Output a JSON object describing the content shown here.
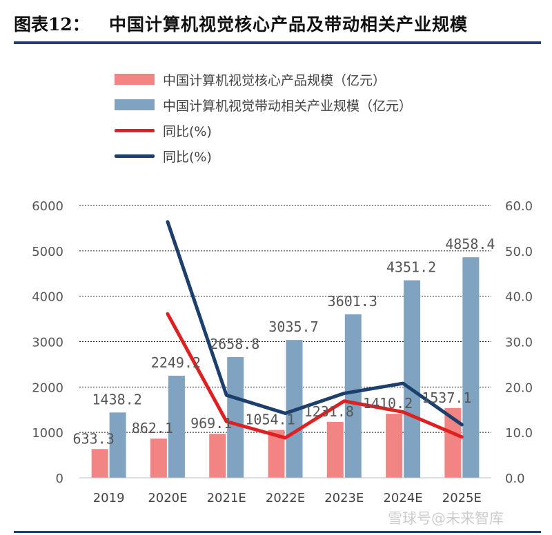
{
  "header": {
    "label": "图表12：",
    "title": "中国计算机视觉核心产品及带动相关产业规模"
  },
  "watermark": "雪球号@未来智库",
  "colors": {
    "core_bar": "#f28583",
    "related_bar": "#7fa3c0",
    "core_line": "#e02020",
    "related_line": "#1c3f6e",
    "rule": "#1f3f6d"
  },
  "chart_data": {
    "type": "bar",
    "categories": [
      "2019",
      "2020E",
      "2021E",
      "2022E",
      "2023E",
      "2024E",
      "2025E"
    ],
    "series": [
      {
        "name": "中国计算机视觉核心产品规模（亿元）",
        "type": "bar",
        "axis": "left",
        "values": [
          633.3,
          862.1,
          969.1,
          1054.1,
          1231.8,
          1410.2,
          1537.1
        ],
        "labels": [
          "633.3",
          "862.1",
          "969.1",
          "1054.1",
          "1231.8",
          "1410.2",
          "1537.1"
        ]
      },
      {
        "name": "中国计算机视觉带动相关产业规模（亿元）",
        "type": "bar",
        "axis": "left",
        "values": [
          1438.2,
          2249.2,
          2658.8,
          3035.7,
          3601.3,
          4351.2,
          4858.4
        ],
        "labels": [
          "1438.2",
          "2249.2",
          "2658.8",
          "3035.7",
          "3601.3",
          "4351.2",
          "4858.4"
        ]
      },
      {
        "name": "同比(%)",
        "type": "line",
        "axis": "right",
        "values": [
          null,
          36.1,
          12.4,
          8.8,
          16.9,
          14.5,
          9.0
        ]
      },
      {
        "name": "同比(%)",
        "type": "line",
        "axis": "right",
        "values": [
          null,
          56.4,
          18.2,
          14.2,
          18.6,
          20.8,
          11.7
        ]
      }
    ],
    "y_left": {
      "min": 0,
      "max": 6000,
      "ticks": [
        "0",
        "1000",
        "2000",
        "3000",
        "4000",
        "5000",
        "6000"
      ]
    },
    "y_right": {
      "min": 0,
      "max": 60,
      "ticks": [
        "0.0",
        "10.0",
        "20.0",
        "30.0",
        "40.0",
        "50.0",
        "60.0"
      ]
    },
    "grid": "horizontal dashed",
    "legend": "top-left"
  }
}
